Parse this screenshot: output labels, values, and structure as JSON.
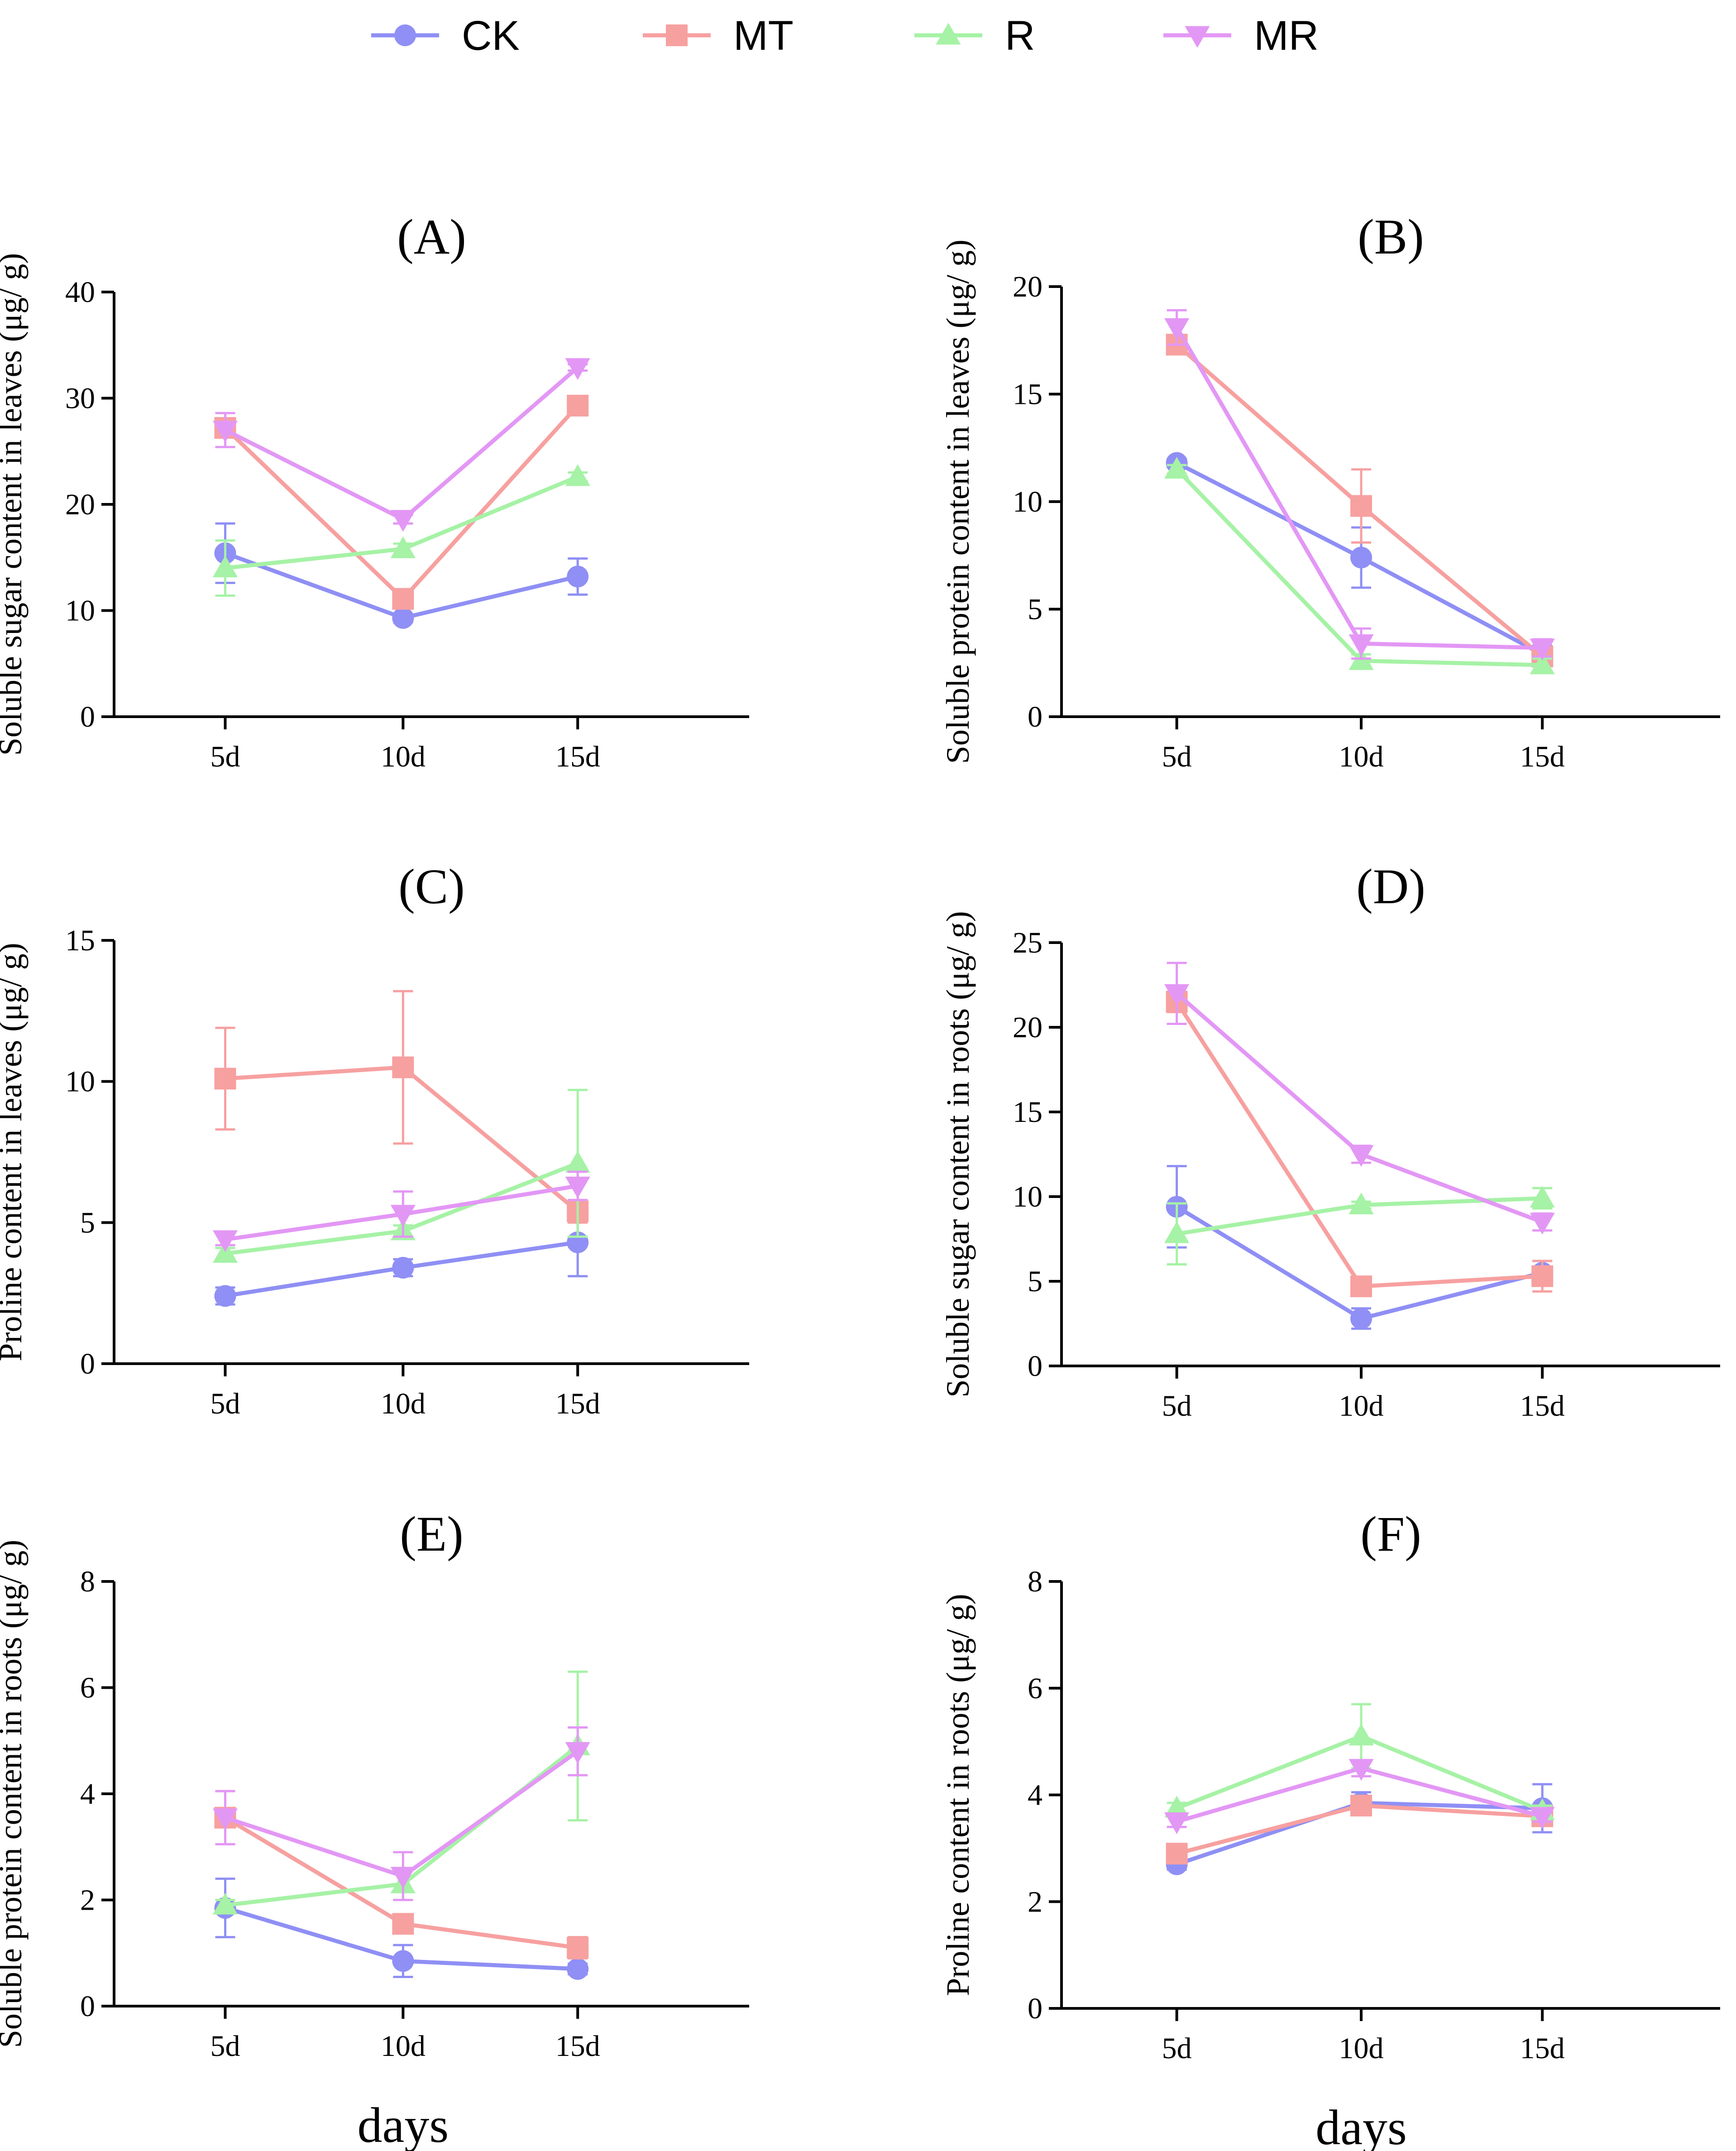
{
  "colors": {
    "CK": "#8f8ff5",
    "MT": "#f7a0a0",
    "R": "#a6f2a6",
    "MR": "#e397f5"
  },
  "legend": [
    {
      "key": "CK",
      "label": "CK",
      "marker": "circle"
    },
    {
      "key": "MT",
      "label": "MT",
      "marker": "square"
    },
    {
      "key": "R",
      "label": "R",
      "marker": "triangle-up"
    },
    {
      "key": "MR",
      "label": "MR",
      "marker": "triangle-down"
    }
  ],
  "chart_data": [
    {
      "type": "line",
      "id": "A",
      "title": "(A)",
      "categories": [
        "5d",
        "10d",
        "15d"
      ],
      "ylabel": "Soluble sugar content in leaves (μg/ g)",
      "xlabel": "",
      "ylim": [
        0,
        40
      ],
      "yticks": [
        0,
        10,
        20,
        30,
        40
      ],
      "series": [
        {
          "name": "CK",
          "values": [
            15.4,
            9.3,
            13.2
          ],
          "errors": [
            2.8,
            0.4,
            1.7
          ]
        },
        {
          "name": "MT",
          "values": [
            27.2,
            11.1,
            29.3
          ],
          "errors": [
            0.7,
            0.5,
            0.5
          ]
        },
        {
          "name": "R",
          "values": [
            14.0,
            15.8,
            22.6
          ],
          "errors": [
            2.6,
            0.5,
            0.4
          ]
        },
        {
          "name": "MR",
          "values": [
            27.0,
            18.6,
            32.9
          ],
          "errors": [
            1.6,
            0.4,
            0.3
          ]
        }
      ]
    },
    {
      "type": "line",
      "id": "B",
      "title": "(B)",
      "categories": [
        "5d",
        "10d",
        "15d"
      ],
      "ylabel": "Soluble protein content in leaves (μg/ g)",
      "xlabel": "",
      "ylim": [
        0,
        20
      ],
      "yticks": [
        0,
        5,
        10,
        15,
        20
      ],
      "series": [
        {
          "name": "CK",
          "values": [
            11.8,
            7.4,
            2.9
          ],
          "errors": [
            0.2,
            1.4,
            0.4
          ]
        },
        {
          "name": "MT",
          "values": [
            17.3,
            9.8,
            2.8
          ],
          "errors": [
            0.4,
            1.7,
            0.3
          ]
        },
        {
          "name": "R",
          "values": [
            11.5,
            2.6,
            2.4
          ],
          "errors": [
            0.2,
            0.3,
            0.3
          ]
        },
        {
          "name": "MR",
          "values": [
            18.1,
            3.4,
            3.2
          ],
          "errors": [
            0.8,
            0.7,
            0.4
          ]
        }
      ]
    },
    {
      "type": "line",
      "id": "C",
      "title": "(C)",
      "categories": [
        "5d",
        "10d",
        "15d"
      ],
      "ylabel": "Proline content in leaves  (μg/ g)",
      "xlabel": "",
      "ylim": [
        0,
        15
      ],
      "yticks": [
        0,
        5,
        10,
        15
      ],
      "series": [
        {
          "name": "CK",
          "values": [
            2.4,
            3.4,
            4.3
          ],
          "errors": [
            0.3,
            0.3,
            1.2
          ]
        },
        {
          "name": "MT",
          "values": [
            10.1,
            10.5,
            5.4
          ],
          "errors": [
            1.8,
            2.7,
            0.4
          ]
        },
        {
          "name": "R",
          "values": [
            3.9,
            4.7,
            7.1
          ],
          "errors": [
            0.2,
            0.2,
            2.6
          ]
        },
        {
          "name": "MR",
          "values": [
            4.4,
            5.3,
            6.3
          ],
          "errors": [
            0.2,
            0.8,
            0.5
          ]
        }
      ]
    },
    {
      "type": "line",
      "id": "D",
      "title": "(D)",
      "categories": [
        "5d",
        "10d",
        "15d"
      ],
      "ylabel": "Soluble sugar content in  roots  (μg/ g)",
      "xlabel": "",
      "ylim": [
        0,
        25
      ],
      "yticks": [
        0,
        5,
        10,
        15,
        20,
        25
      ],
      "series": [
        {
          "name": "CK",
          "values": [
            9.4,
            2.8,
            5.5
          ],
          "errors": [
            2.4,
            0.6,
            0.7
          ]
        },
        {
          "name": "MT",
          "values": [
            21.5,
            4.7,
            5.3
          ],
          "errors": [
            0.6,
            0.3,
            0.9
          ]
        },
        {
          "name": "R",
          "values": [
            7.8,
            9.5,
            9.9
          ],
          "errors": [
            1.8,
            0.2,
            0.6
          ]
        },
        {
          "name": "MR",
          "values": [
            22.0,
            12.5,
            8.5
          ],
          "errors": [
            1.8,
            0.5,
            0.5
          ]
        }
      ]
    },
    {
      "type": "line",
      "id": "E",
      "title": "(E)",
      "categories": [
        "5d",
        "10d",
        "15d"
      ],
      "ylabel": "Soluble protein content in roots (μg/ g)",
      "xlabel": "days",
      "ylim": [
        0,
        8
      ],
      "yticks": [
        0,
        2,
        4,
        6,
        8
      ],
      "series": [
        {
          "name": "CK",
          "values": [
            1.85,
            0.85,
            0.7
          ],
          "errors": [
            0.55,
            0.3,
            0.1
          ]
        },
        {
          "name": "MT",
          "values": [
            3.55,
            1.55,
            1.1
          ],
          "errors": [
            0.5,
            0.1,
            0.2
          ]
        },
        {
          "name": "R",
          "values": [
            1.9,
            2.3,
            4.9
          ],
          "errors": [
            0.1,
            0.3,
            1.4
          ]
        },
        {
          "name": "MR",
          "values": [
            3.55,
            2.45,
            4.8
          ],
          "errors": [
            0.5,
            0.45,
            0.45
          ]
        }
      ]
    },
    {
      "type": "line",
      "id": "F",
      "title": "(F)",
      "categories": [
        "5d",
        "10d",
        "15d"
      ],
      "ylabel": "Proline content in roots (μg/ g)",
      "xlabel": "days",
      "ylim": [
        0,
        8
      ],
      "yticks": [
        0,
        2,
        4,
        6,
        8
      ],
      "series": [
        {
          "name": "CK",
          "values": [
            2.7,
            3.85,
            3.75
          ],
          "errors": [
            0.1,
            0.2,
            0.45
          ]
        },
        {
          "name": "MT",
          "values": [
            2.9,
            3.8,
            3.6
          ],
          "errors": [
            0.1,
            0.1,
            0.1
          ]
        },
        {
          "name": "R",
          "values": [
            3.75,
            5.1,
            3.7
          ],
          "errors": [
            0.1,
            0.6,
            0.1
          ]
        },
        {
          "name": "MR",
          "values": [
            3.5,
            4.5,
            3.6
          ],
          "errors": [
            0.1,
            0.15,
            0.1
          ]
        }
      ]
    }
  ]
}
